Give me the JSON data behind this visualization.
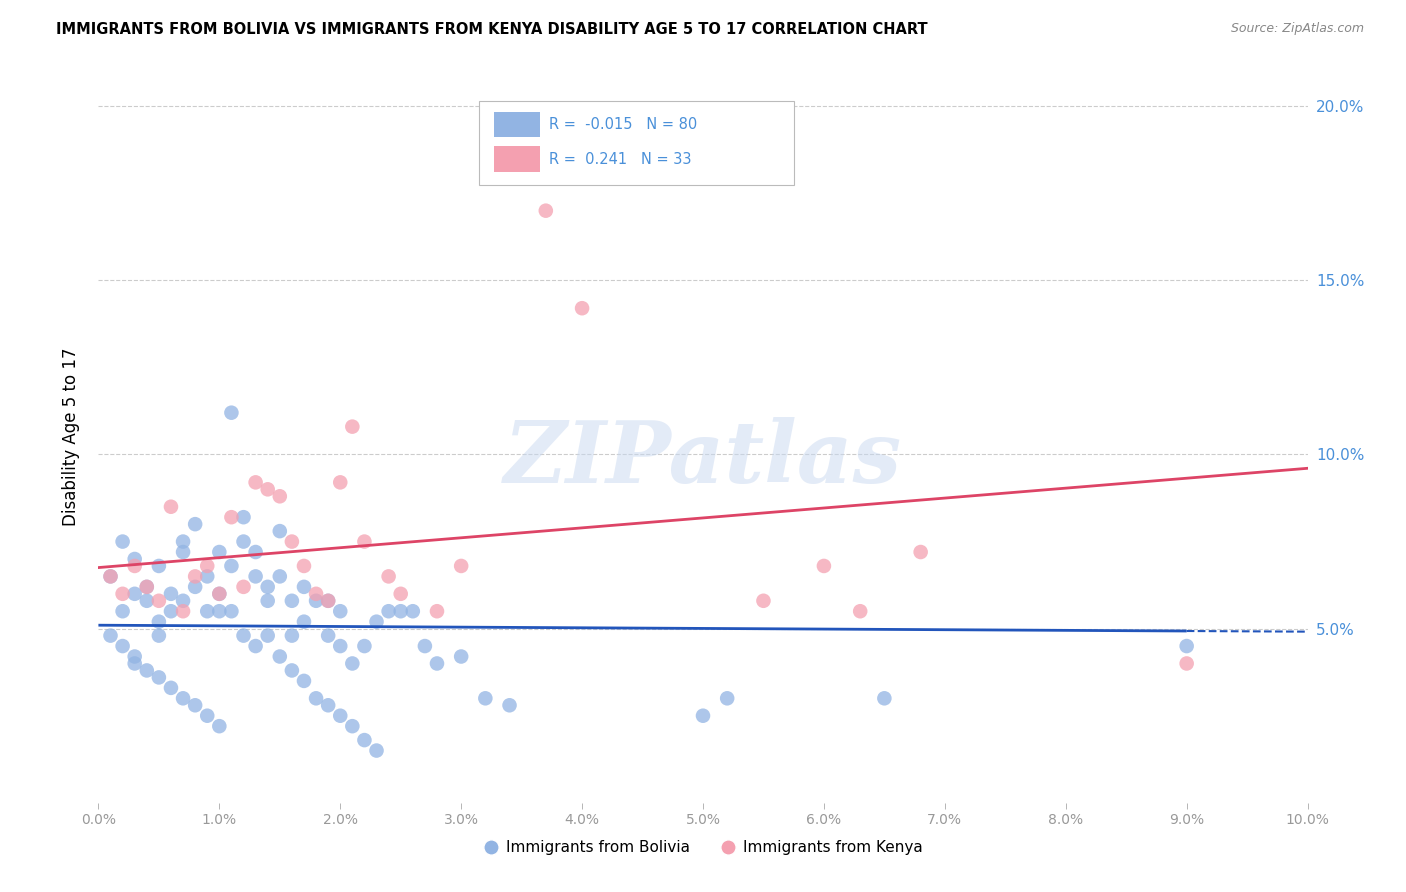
{
  "title": "IMMIGRANTS FROM BOLIVIA VS IMMIGRANTS FROM KENYA DISABILITY AGE 5 TO 17 CORRELATION CHART",
  "source": "Source: ZipAtlas.com",
  "ylabel": "Disability Age 5 to 17",
  "xlim": [
    0.0,
    0.1
  ],
  "ylim": [
    0.0,
    0.21
  ],
  "xticks": [
    0.0,
    0.01,
    0.02,
    0.03,
    0.04,
    0.05,
    0.06,
    0.07,
    0.08,
    0.09,
    0.1
  ],
  "yticks_right": [
    0.05,
    0.1,
    0.15,
    0.2
  ],
  "bolivia_R": -0.015,
  "bolivia_N": 80,
  "kenya_R": 0.241,
  "kenya_N": 33,
  "bolivia_color": "#92b4e3",
  "kenya_color": "#f4a0b0",
  "bolivia_line_color": "#2255bb",
  "kenya_line_color": "#dd4466",
  "right_axis_color": "#4a90d9",
  "background_color": "#ffffff",
  "grid_color": "#cccccc",
  "watermark": "ZIPatlas",
  "bolivia_x": [
    0.001,
    0.002,
    0.002,
    0.003,
    0.003,
    0.004,
    0.004,
    0.005,
    0.005,
    0.005,
    0.006,
    0.006,
    0.007,
    0.007,
    0.007,
    0.008,
    0.008,
    0.009,
    0.009,
    0.01,
    0.01,
    0.01,
    0.011,
    0.011,
    0.012,
    0.012,
    0.013,
    0.013,
    0.014,
    0.014,
    0.015,
    0.015,
    0.016,
    0.016,
    0.017,
    0.017,
    0.018,
    0.019,
    0.019,
    0.02,
    0.02,
    0.021,
    0.022,
    0.023,
    0.024,
    0.025,
    0.026,
    0.027,
    0.028,
    0.03,
    0.001,
    0.002,
    0.003,
    0.003,
    0.004,
    0.005,
    0.006,
    0.007,
    0.008,
    0.009,
    0.01,
    0.011,
    0.012,
    0.013,
    0.014,
    0.015,
    0.016,
    0.017,
    0.018,
    0.019,
    0.02,
    0.021,
    0.022,
    0.023,
    0.032,
    0.034,
    0.05,
    0.052,
    0.065,
    0.09
  ],
  "bolivia_y": [
    0.065,
    0.055,
    0.075,
    0.06,
    0.07,
    0.058,
    0.062,
    0.052,
    0.048,
    0.068,
    0.055,
    0.06,
    0.072,
    0.075,
    0.058,
    0.062,
    0.08,
    0.065,
    0.055,
    0.072,
    0.055,
    0.06,
    0.068,
    0.055,
    0.075,
    0.082,
    0.065,
    0.072,
    0.058,
    0.062,
    0.078,
    0.065,
    0.048,
    0.058,
    0.052,
    0.062,
    0.058,
    0.048,
    0.058,
    0.055,
    0.045,
    0.04,
    0.045,
    0.052,
    0.055,
    0.055,
    0.055,
    0.045,
    0.04,
    0.042,
    0.048,
    0.045,
    0.042,
    0.04,
    0.038,
    0.036,
    0.033,
    0.03,
    0.028,
    0.025,
    0.022,
    0.112,
    0.048,
    0.045,
    0.048,
    0.042,
    0.038,
    0.035,
    0.03,
    0.028,
    0.025,
    0.022,
    0.018,
    0.015,
    0.03,
    0.028,
    0.025,
    0.03,
    0.03,
    0.045
  ],
  "kenya_x": [
    0.001,
    0.002,
    0.003,
    0.004,
    0.005,
    0.006,
    0.007,
    0.008,
    0.009,
    0.01,
    0.011,
    0.012,
    0.013,
    0.014,
    0.015,
    0.016,
    0.017,
    0.018,
    0.019,
    0.02,
    0.021,
    0.022,
    0.024,
    0.025,
    0.028,
    0.03,
    0.037,
    0.04,
    0.055,
    0.06,
    0.063,
    0.068,
    0.09
  ],
  "kenya_y": [
    0.065,
    0.06,
    0.068,
    0.062,
    0.058,
    0.085,
    0.055,
    0.065,
    0.068,
    0.06,
    0.082,
    0.062,
    0.092,
    0.09,
    0.088,
    0.075,
    0.068,
    0.06,
    0.058,
    0.092,
    0.108,
    0.075,
    0.065,
    0.06,
    0.055,
    0.068,
    0.17,
    0.142,
    0.058,
    0.068,
    0.055,
    0.072,
    0.04
  ],
  "bottom_legend_items": [
    "Immigrants from Bolivia",
    "Immigrants from Kenya"
  ]
}
